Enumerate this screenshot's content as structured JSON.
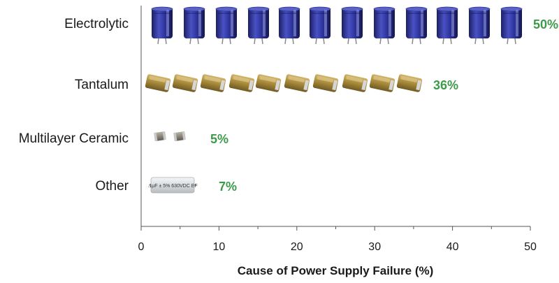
{
  "chart_data": {
    "type": "bar",
    "orientation": "horizontal",
    "pictograph": true,
    "categories": [
      "Electrolytic",
      "Tantalum",
      "Multilayer Ceramic",
      "Other"
    ],
    "values": [
      50,
      36,
      5,
      7
    ],
    "data_labels": [
      "50%",
      "36%",
      "5%",
      "7%"
    ],
    "xlabel": "Cause of Power Supply Failure (%)",
    "ylabel": "",
    "xlim": [
      0,
      50
    ],
    "xticks": [
      0,
      10,
      20,
      30,
      40,
      50
    ],
    "grid": false,
    "legend": "none",
    "icons": [
      "electrolytic-capacitor-icon",
      "tantalum-capacitor-icon",
      "ceramic-capacitor-icon",
      "film-capacitor-icon"
    ],
    "icon_counts": [
      12,
      10,
      2,
      1
    ],
    "icon_print": ".1µF ± 5%  630VDC EF",
    "colors": {
      "label_green": "#3d9a4a",
      "axis": "#555555",
      "electrolytic_body": "#2a2f8c",
      "tantalum_body": "#a88a3a",
      "ceramic_body": "#8a8578",
      "film_body": "#d9dcde"
    }
  }
}
